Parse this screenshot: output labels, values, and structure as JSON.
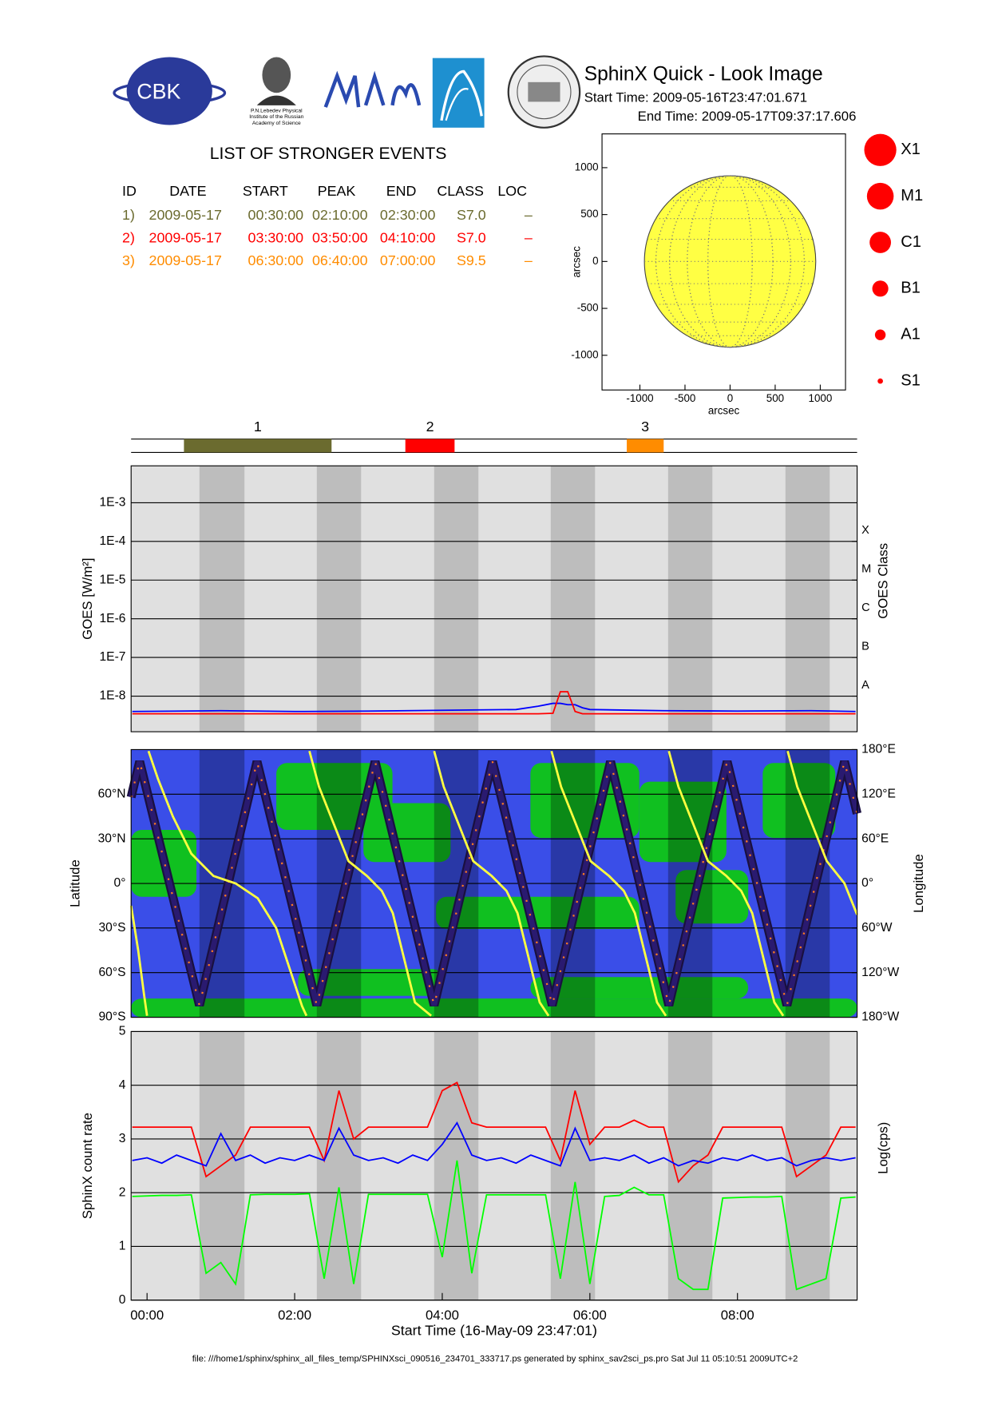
{
  "header": {
    "title": "SphinX Quick - Look Image",
    "start_time": "Start Time: 2009-05-16T23:47:01.671",
    "end_time": "End Time: 2009-05-17T09:37:17.606"
  },
  "logos": {
    "cbk": "CBK",
    "lebedev": [
      "P.N.Lebedev Physical",
      "Institute of the Russian",
      "Academy of Science"
    ]
  },
  "events": {
    "title": "LIST OF STRONGER EVENTS",
    "header": [
      "ID",
      "DATE",
      "START",
      "PEAK",
      "END",
      "CLASS",
      "LOC"
    ],
    "rows": [
      [
        "1)",
        "2009-05-17",
        "00:30:00",
        "02:10:00",
        "02:30:00",
        "S7.0",
        "–"
      ],
      [
        "2)",
        "2009-05-17",
        "03:30:00",
        "03:50:00",
        "04:10:00",
        "S7.0",
        "–"
      ],
      [
        "3)",
        "2009-05-17",
        "06:30:00",
        "06:40:00",
        "07:00:00",
        "S9.5",
        "–"
      ]
    ],
    "colors": [
      "#6b6b2f",
      "#ff0000",
      "#ff8c00"
    ]
  },
  "classes": {
    "labels": [
      "X1",
      "M1",
      "C1",
      "B1",
      "A1",
      "S1"
    ],
    "color": "#ff0000"
  },
  "night_bands": [
    [
      0.71,
      1.32
    ],
    [
      2.3,
      2.9
    ],
    [
      3.89,
      4.49
    ],
    [
      5.47,
      6.07
    ],
    [
      7.06,
      7.66
    ],
    [
      8.65,
      9.25
    ]
  ],
  "footer": "file: ///home1/sphinx/sphinx_all_files_temp/SPHINXsci_090516_234701_333717.ps generated by sphinx_sav2sci_ps.pro Sat Jul 11 05:10:51 2009UTC+2",
  "chart_data": [
    {
      "type": "disk",
      "xlim": [
        -1420,
        1280
      ],
      "ylim": [
        -1370,
        1360
      ],
      "xticks": [
        -1000,
        -500,
        0,
        500,
        1000
      ],
      "yticks": [
        -1000,
        -500,
        0,
        500,
        1000
      ],
      "radius": 950,
      "color": "#ffff44",
      "xlabel": "arcsec",
      "ylabel": "arcsec"
    },
    {
      "type": "timeline",
      "xlim": [
        -0.216,
        9.621
      ],
      "labels": [
        "1",
        "2",
        "3"
      ],
      "start": [
        0.5,
        3.5,
        6.5
      ],
      "end": [
        2.5,
        4.1667,
        7.0
      ],
      "colors": [
        "#6b6b2f",
        "#ff0000",
        "#ff8c00"
      ]
    },
    {
      "type": "line",
      "ylog": true,
      "xlim": [
        -0.216,
        9.621
      ],
      "ylim": [
        1.2e-09,
        0.009
      ],
      "yticks": [
        {
          "value": 0.001,
          "label": "1E-3"
        },
        {
          "value": 0.0001,
          "label": "1E-4"
        },
        {
          "value": 1e-05,
          "label": "1E-5"
        },
        {
          "value": 1e-06,
          "label": "1E-6"
        },
        {
          "value": 1e-07,
          "label": "1E-7"
        },
        {
          "value": 1e-08,
          "label": "1E-8"
        }
      ],
      "class_ticks": [
        {
          "value": 0.0001,
          "label": "X"
        },
        {
          "value": 1e-05,
          "label": "M"
        },
        {
          "value": 1e-06,
          "label": "C"
        },
        {
          "value": 1e-07,
          "label": "B"
        },
        {
          "value": 1e-08,
          "label": "A"
        }
      ],
      "ylabel": "GOES [W/m²]",
      "y2label": "GOES Class",
      "grid": true,
      "x": [
        -0.2,
        1,
        2,
        3,
        4,
        5,
        5.3,
        5.5,
        5.6,
        5.7,
        5.8,
        5.9,
        6,
        7,
        8,
        9,
        9.6
      ],
      "series": [
        {
          "color": "#0000ff",
          "values": [
            4e-09,
            4.2e-09,
            4e-09,
            4.1e-09,
            4.3e-09,
            4.5e-09,
            5.5e-09,
            6.5e-09,
            6.5e-09,
            6e-09,
            6e-09,
            5e-09,
            4.5e-09,
            4.2e-09,
            4.1e-09,
            4.2e-09,
            4e-09
          ]
        },
        {
          "color": "#ff0000",
          "values": [
            3.5e-09,
            3.5e-09,
            3.5e-09,
            3.5e-09,
            3.5e-09,
            3.5e-09,
            3.5e-09,
            3.6e-09,
            1.3e-08,
            1.3e-08,
            4e-09,
            3.5e-09,
            3.5e-09,
            3.5e-09,
            3.5e-09,
            3.5e-09,
            3.5e-09
          ]
        }
      ]
    },
    {
      "type": "orbit",
      "xlim": [
        -0.216,
        9.621
      ],
      "ylim": [
        -90,
        90
      ],
      "y2lim": [
        -180,
        180
      ],
      "yticks": [
        {
          "value": 60,
          "label": "60°N"
        },
        {
          "value": 30,
          "label": "30°N"
        },
        {
          "value": 0,
          "label": "0°"
        },
        {
          "value": -30,
          "label": "30°S"
        },
        {
          "value": -60,
          "label": "60°S"
        },
        {
          "value": -90,
          "label": "90°S"
        }
      ],
      "y2ticks": [
        {
          "value": 180,
          "label": "180°E"
        },
        {
          "value": 120,
          "label": "120°E"
        },
        {
          "value": 60,
          "label": "60°E"
        },
        {
          "value": 0,
          "label": "0°"
        },
        {
          "value": -60,
          "label": "60°W"
        },
        {
          "value": -120,
          "label": "120°W"
        },
        {
          "value": -180,
          "label": "180°W"
        }
      ],
      "ylabel": "Latitude",
      "y2label": "Longitude",
      "grid": true,
      "series": [
        {
          "color": "#2a1a70",
          "x": [
            -0.216,
            -0.1,
            0.71,
            1.49,
            2.3,
            3.09,
            3.89,
            4.68,
            5.49,
            6.28,
            7.07,
            7.86,
            8.67,
            9.45,
            9.621
          ],
          "values": [
            58,
            82,
            -82,
            82,
            -82,
            82,
            -82,
            82,
            -82,
            82,
            -82,
            82,
            -82,
            82,
            47
          ]
        },
        {
          "color": "#ffff40",
          "axis": "y2",
          "x": [
            -0.216,
            -0.12,
            -0.04,
            0.0,
            0.0,
            0.02,
            0.15,
            0.35,
            0.6,
            0.9,
            1.2,
            1.5,
            1.75,
            1.95,
            2.1,
            2.16,
            2.17,
            2.2,
            2.33,
            2.53,
            2.73,
            2.98,
            3.18,
            3.33,
            3.48,
            3.63,
            3.85,
            3.86,
            3.89,
            4.02,
            4.22,
            4.42,
            4.67,
            4.87,
            5.02,
            5.17,
            5.32,
            5.44,
            5.45,
            5.48,
            5.61,
            5.81,
            6.01,
            6.26,
            6.46,
            6.61,
            6.76,
            6.91,
            7.03,
            7.04,
            7.07,
            7.2,
            7.4,
            7.6,
            7.85,
            8.05,
            8.2,
            8.35,
            8.5,
            8.62,
            8.64,
            8.68,
            8.81,
            9.01,
            9.21,
            9.45,
            9.621
          ],
          "values": [
            -30,
            -90,
            -150,
            -178,
            null,
            178,
            140,
            90,
            40,
            10,
            0,
            -20,
            -60,
            -120,
            -165,
            -178,
            null,
            178,
            130,
            80,
            30,
            10,
            -10,
            -40,
            -100,
            -160,
            -178,
            null,
            178,
            130,
            80,
            30,
            10,
            -10,
            -40,
            -100,
            -160,
            -178,
            null,
            178,
            130,
            80,
            30,
            10,
            -10,
            -40,
            -100,
            -160,
            -178,
            null,
            178,
            130,
            80,
            30,
            10,
            -10,
            -40,
            -100,
            -160,
            -178,
            null,
            178,
            130,
            80,
            30,
            0,
            -42
          ]
        }
      ]
    },
    {
      "type": "line",
      "xlim": [
        -0.216,
        9.621
      ],
      "ylim": [
        0,
        5
      ],
      "yticks": [
        0,
        1,
        2,
        3,
        4,
        5
      ],
      "xticks": [
        {
          "value": 0,
          "label": "00:00"
        },
        {
          "value": 2,
          "label": "02:00"
        },
        {
          "value": 4,
          "label": "04:00"
        },
        {
          "value": 6,
          "label": "06:00"
        },
        {
          "value": 8,
          "label": "08:00"
        }
      ],
      "ylabel": "SphinX count rate",
      "y2label": "Log(cps)",
      "xlabel": "Start Time (16-May-09 23:47:01)",
      "grid": true,
      "x": [
        -0.2,
        0,
        0.2,
        0.4,
        0.6,
        0.8,
        1.0,
        1.2,
        1.4,
        1.6,
        1.8,
        2.0,
        2.2,
        2.4,
        2.6,
        2.8,
        3.0,
        3.2,
        3.4,
        3.6,
        3.8,
        4.0,
        4.2,
        4.4,
        4.6,
        4.8,
        5.0,
        5.2,
        5.4,
        5.6,
        5.8,
        6.0,
        6.2,
        6.4,
        6.6,
        6.8,
        7.0,
        7.2,
        7.4,
        7.6,
        7.8,
        8.0,
        8.2,
        8.4,
        8.6,
        8.8,
        9.0,
        9.2,
        9.4,
        9.6
      ],
      "series": [
        {
          "color": "#ff0000",
          "values": [
            3.22,
            3.22,
            3.22,
            3.22,
            3.22,
            2.3,
            2.5,
            2.7,
            3.22,
            3.22,
            3.22,
            3.22,
            3.22,
            2.6,
            3.9,
            3.0,
            3.22,
            3.22,
            3.22,
            3.22,
            3.22,
            3.9,
            4.05,
            3.3,
            3.22,
            3.22,
            3.22,
            3.22,
            3.22,
            2.6,
            3.9,
            2.9,
            3.22,
            3.22,
            3.35,
            3.22,
            3.22,
            2.2,
            2.5,
            2.7,
            3.22,
            3.22,
            3.22,
            3.22,
            3.22,
            2.3,
            2.5,
            2.7,
            3.22,
            3.22
          ]
        },
        {
          "color": "#00ff00",
          "values": [
            1.93,
            1.94,
            1.95,
            1.95,
            1.96,
            0.5,
            0.7,
            0.3,
            1.96,
            1.97,
            1.97,
            1.97,
            1.98,
            0.4,
            2.1,
            0.3,
            1.97,
            1.97,
            1.97,
            1.97,
            1.97,
            0.8,
            2.6,
            0.5,
            1.96,
            1.96,
            1.96,
            1.96,
            1.96,
            0.4,
            2.2,
            0.3,
            1.93,
            1.95,
            2.1,
            1.96,
            1.96,
            0.4,
            0.2,
            0.2,
            1.9,
            1.91,
            1.92,
            1.92,
            1.93,
            0.2,
            0.3,
            0.4,
            1.9,
            1.92
          ]
        },
        {
          "color": "#0000ff",
          "values": [
            2.6,
            2.65,
            2.55,
            2.7,
            2.6,
            2.5,
            3.1,
            2.6,
            2.7,
            2.55,
            2.65,
            2.6,
            2.7,
            2.6,
            3.2,
            2.7,
            2.6,
            2.65,
            2.55,
            2.7,
            2.6,
            2.9,
            3.3,
            2.7,
            2.6,
            2.65,
            2.55,
            2.7,
            2.6,
            2.5,
            3.2,
            2.6,
            2.65,
            2.6,
            2.7,
            2.55,
            2.65,
            2.5,
            2.6,
            2.55,
            2.65,
            2.6,
            2.7,
            2.6,
            2.65,
            2.5,
            2.6,
            2.65,
            2.6,
            2.65
          ]
        }
      ]
    }
  ]
}
